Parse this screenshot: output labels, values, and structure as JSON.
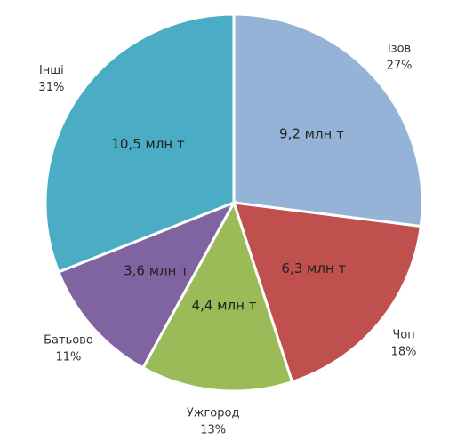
{
  "chart_data": {
    "type": "pie",
    "categories": [
      "Ізов",
      "Чоп",
      "Ужгород",
      "Батьово",
      "Інші"
    ],
    "values": [
      27,
      18,
      13,
      11,
      31
    ],
    "value_labels": [
      "27%",
      "18%",
      "13%",
      "11%",
      "31%"
    ],
    "inner_labels": [
      "9,2 млн т",
      "6,3 млн т",
      "4,4 млн т",
      "3,6 млн т",
      "10,5 млн т"
    ],
    "colors": [
      "#95b3d7",
      "#c0504d",
      "#9bbb59",
      "#8064a2",
      "#4bacc6"
    ]
  }
}
